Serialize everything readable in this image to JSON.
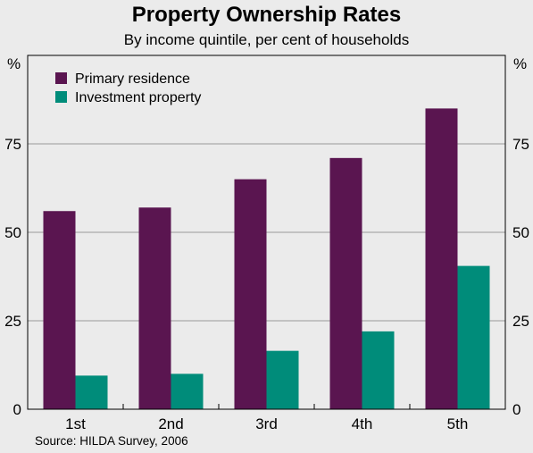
{
  "chart_data": {
    "type": "bar",
    "title": "Property Ownership Rates",
    "subtitle": "By income quintile, per cent of households",
    "ylabel_left": "%",
    "ylabel_right": "%",
    "categories": [
      "1st",
      "2nd",
      "3rd",
      "4th",
      "5th"
    ],
    "series": [
      {
        "name": "Primary residence",
        "color": "#5a1550",
        "values": [
          56,
          57,
          65,
          71,
          85
        ]
      },
      {
        "name": "Investment property",
        "color": "#008c7a",
        "values": [
          9.5,
          10,
          16.5,
          22,
          40.5
        ]
      }
    ],
    "ylim": [
      0,
      100
    ],
    "yticks": [
      0,
      25,
      50,
      75
    ],
    "grid": true,
    "legend_position": "top-left",
    "source": "Source: HILDA Survey, 2006"
  }
}
